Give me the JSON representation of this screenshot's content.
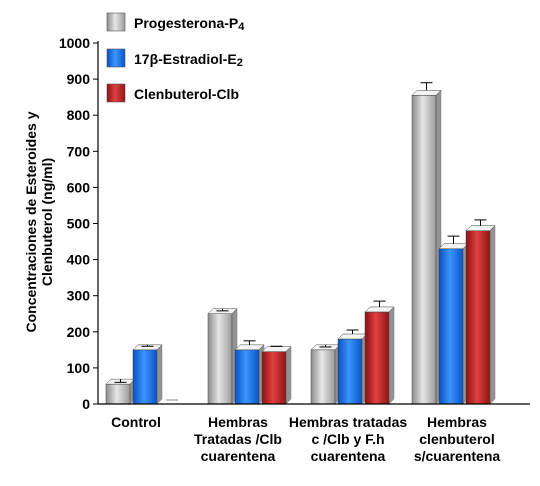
{
  "chart_data": {
    "type": "bar",
    "title": "",
    "ylabel_lines": [
      "Concentraciones de Esteroides y",
      "Clenbuterol (ng/ml)"
    ],
    "ylim": [
      0,
      1000
    ],
    "yticks": [
      0,
      100,
      200,
      300,
      400,
      500,
      600,
      700,
      800,
      900,
      1000
    ],
    "categories": [
      [
        "Control"
      ],
      [
        "Hembras",
        "Tratadas /Clb",
        "cuarentena"
      ],
      [
        "Hembras tratadas",
        "c /Clb y F.h",
        "cuarentena"
      ],
      [
        "Hembras",
        "clenbuterol",
        "s/cuarentena"
      ]
    ],
    "legend_position": "top",
    "series": [
      {
        "name_main": "Progesterona-P",
        "name_sub": "4",
        "color": "#b4b4b4",
        "values": [
          55,
          250,
          150,
          855
        ],
        "errors": [
          5,
          8,
          8,
          35
        ]
      },
      {
        "name_main": "17β-Estradiol-E",
        "name_sub": "2",
        "color": "#1a73f0",
        "values": [
          150,
          150,
          180,
          430
        ],
        "errors": [
          10,
          25,
          25,
          35
        ]
      },
      {
        "name_main": "Clenbuterol-Clb",
        "name_sub": "",
        "color": "#c42424",
        "values": [
          0,
          145,
          255,
          480
        ],
        "errors": [
          0,
          15,
          30,
          30
        ]
      }
    ]
  }
}
